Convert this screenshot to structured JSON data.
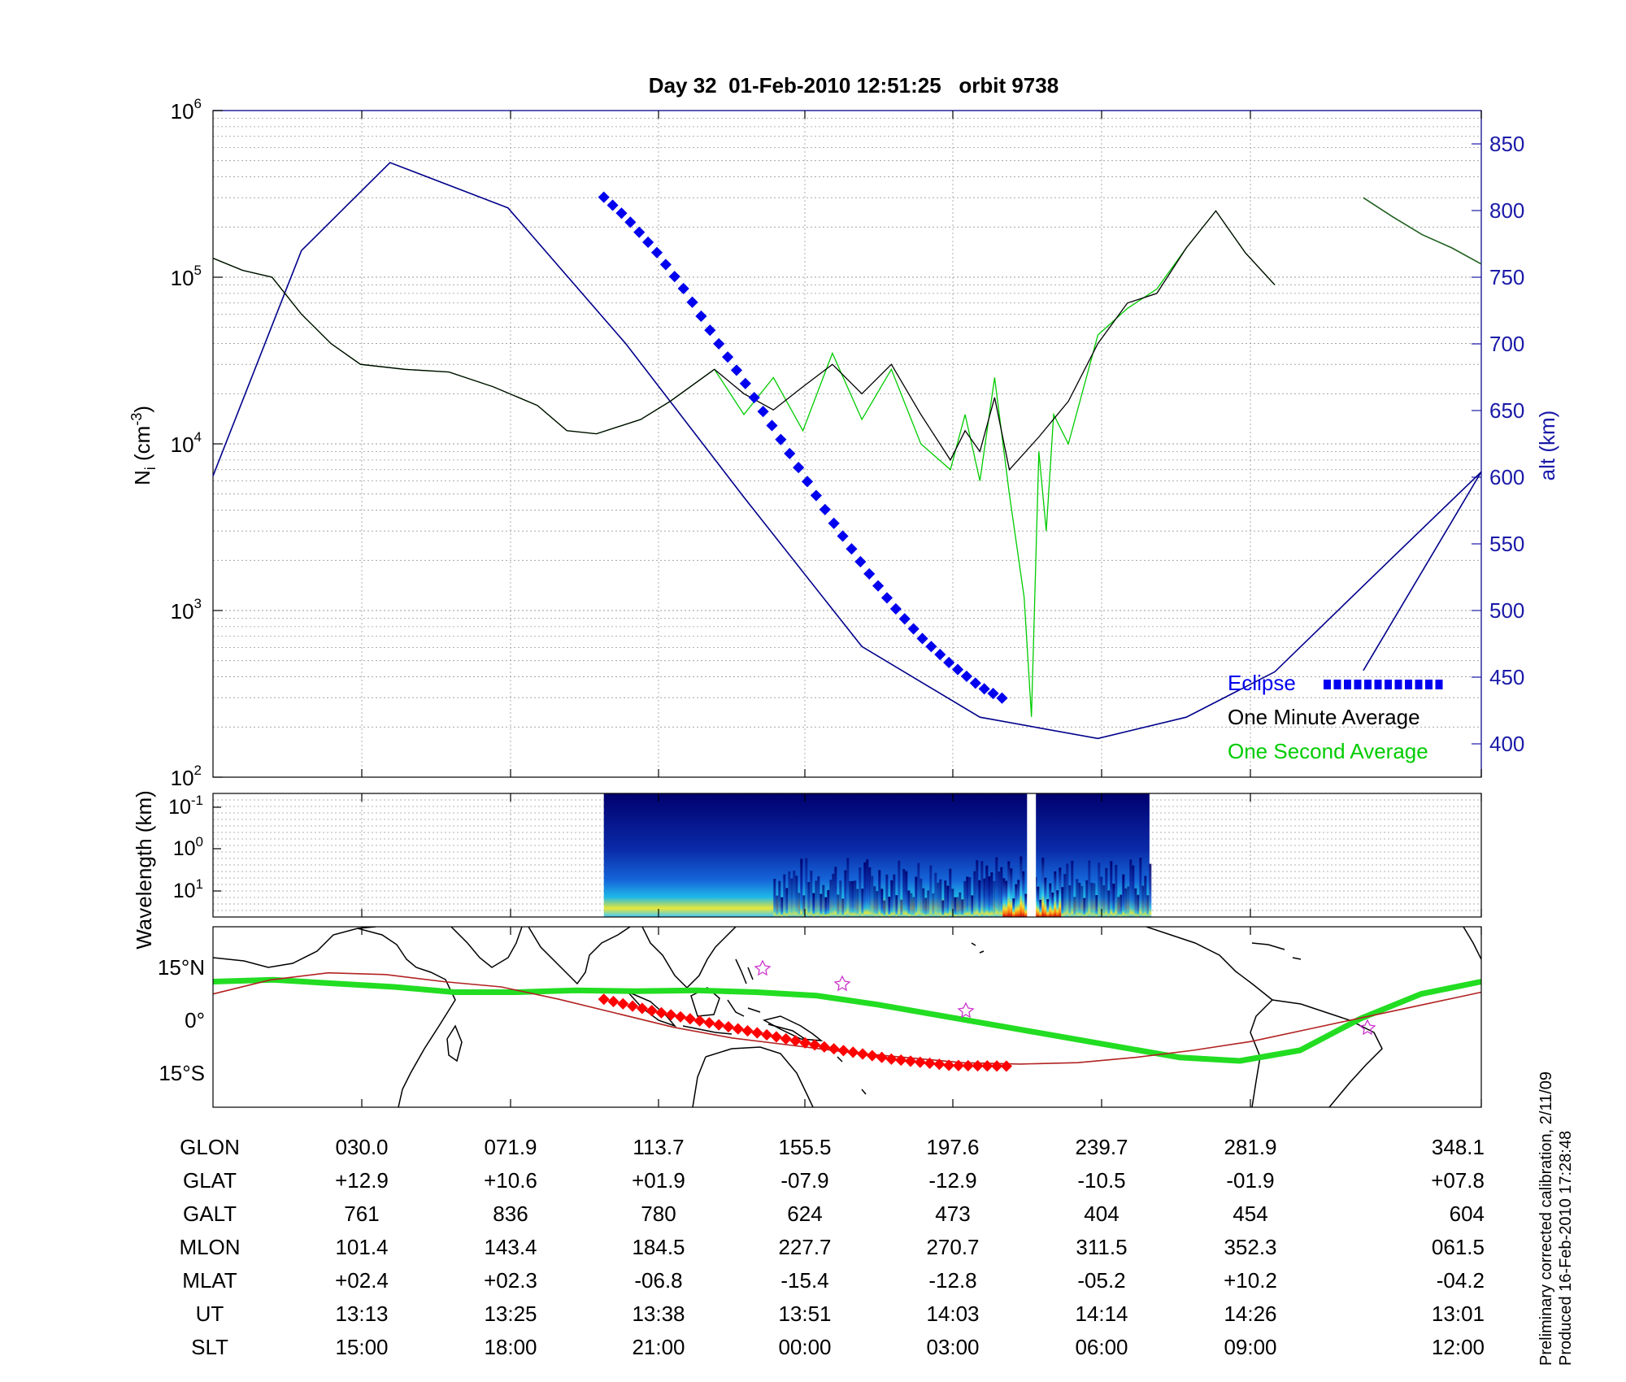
{
  "figure": {
    "title": "Day 32  01-Feb-2010 12:51:25   orbit 9738",
    "footnote_line1": "Preliminary corrected calibration, 2/11/09",
    "footnote_line2": "Produced 16-Feb-2010 17:28:48"
  },
  "colors": {
    "altitude": "#00008b",
    "axis_right": "#1a1aa8",
    "one_minute": "#000000",
    "one_second": "#00cc00",
    "eclipse": "#0000ee",
    "orbit_track": "#b22222",
    "dip_equator": "#22dd22",
    "eclipse_map": "#ff0000",
    "star": "#cc33cc"
  },
  "chart_data": [
    {
      "type": "line",
      "panel": "density",
      "ylabel": "N",
      "ylabel_sub": "i",
      "ylabel_unit": "(cm",
      "ylabel_exp": "-3",
      "ylabel_close": ")",
      "y_scale": "log",
      "ylim": [
        100,
        1000000
      ],
      "y_ticks": [
        {
          "base": "10",
          "exp": "2",
          "value": 100
        },
        {
          "base": "10",
          "exp": "3",
          "value": 1000
        },
        {
          "base": "10",
          "exp": "4",
          "value": 10000
        },
        {
          "base": "10",
          "exp": "5",
          "value": 100000
        },
        {
          "base": "10",
          "exp": "6",
          "value": 1000000
        }
      ],
      "y2label": "alt (km)",
      "y2lim": [
        375,
        875
      ],
      "y2_ticks": [
        "400",
        "450",
        "500",
        "550",
        "600",
        "650",
        "700",
        "750",
        "800",
        "850"
      ],
      "x_unit": "UT minutes",
      "xlim": [
        0,
        86
      ],
      "grid": true,
      "legend_position": "bottom-right",
      "legend": {
        "eclipse": "Eclipse",
        "minute": "One Minute Average",
        "second": "One Second Average"
      },
      "series": [
        {
          "name": "alt (km)",
          "role": "altitude",
          "x": [
            0,
            6,
            12,
            20,
            28,
            36,
            44,
            52,
            60,
            66,
            72,
            80,
            86
          ],
          "values": [
            601,
            770,
            836,
            802,
            700,
            585,
            473,
            420,
            404,
            420,
            454,
            540,
            604
          ]
        },
        {
          "name": "One Minute Average",
          "x": [
            0,
            2,
            4,
            6,
            8,
            10,
            13,
            16,
            19,
            22,
            24,
            26,
            29,
            31,
            34,
            36,
            38,
            40,
            42,
            44,
            46,
            48,
            50,
            51,
            52,
            53,
            54,
            56,
            58,
            60,
            62,
            64,
            66,
            68,
            70,
            72
          ],
          "values": [
            130000,
            110000,
            100000,
            60000,
            40000,
            30000,
            28000,
            27000,
            22000,
            17000,
            12000,
            11500,
            14000,
            18000,
            28000,
            20000,
            16000,
            22000,
            30000,
            20000,
            30000,
            15000,
            8000,
            12000,
            9000,
            19000,
            7000,
            11000,
            18000,
            40000,
            70000,
            80000,
            150000,
            250000,
            140000,
            90000
          ]
        },
        {
          "name": "One Second Average",
          "x": [
            0,
            2,
            4,
            6,
            8,
            10,
            13,
            16,
            19,
            22,
            24,
            26,
            29,
            31,
            34,
            36,
            38,
            40,
            42,
            44,
            46,
            48,
            50,
            51,
            52,
            53,
            54,
            55,
            55.5,
            56,
            56.5,
            57,
            58,
            60,
            62,
            64,
            66,
            68,
            70,
            72
          ],
          "values": [
            130000,
            110000,
            100000,
            60000,
            40000,
            30000,
            28000,
            27000,
            22000,
            17000,
            12000,
            11500,
            14000,
            18000,
            28000,
            15000,
            25000,
            12000,
            35000,
            14000,
            28000,
            10000,
            7000,
            15000,
            6000,
            25000,
            5000,
            1200,
            230,
            9000,
            3000,
            15000,
            10000,
            45000,
            65000,
            85000,
            150000,
            250000,
            140000,
            90000
          ]
        },
        {
          "name": "One Minute Average",
          "role": "wrap",
          "x": [
            78,
            80,
            82,
            84,
            86
          ],
          "values": [
            300000,
            230000,
            180000,
            150000,
            120000
          ]
        },
        {
          "name": "Eclipse",
          "role": "eclipse",
          "x": [
            26.5,
            28,
            30,
            32,
            34,
            36,
            38,
            40,
            42,
            44,
            46,
            48,
            50,
            52,
            53.9
          ],
          "values": [
            810,
            795,
            770,
            740,
            705,
            672,
            637,
            602,
            567,
            535,
            505,
            480,
            460,
            443,
            432
          ]
        }
      ]
    },
    {
      "type": "heatmap",
      "panel": "spectrogram",
      "ylabel": "Wavelength (km)",
      "y_ticks": [
        {
          "base": "10",
          "exp": "-1"
        },
        {
          "base": "10",
          "exp": "0"
        },
        {
          "base": "10",
          "exp": "1"
        }
      ],
      "data_range_ut": [
        26.5,
        63.5
      ],
      "bright_band_ut": [
        38,
        63.5
      ],
      "gap_ut": [
        55.2,
        55.8
      ]
    },
    {
      "type": "map",
      "panel": "ground-track",
      "y_ticks": [
        "15°N",
        "0°",
        "15°S"
      ],
      "orbit_track_lat": [
        7,
        11,
        13,
        12.5,
        10.5,
        9,
        5.5,
        1.5,
        -2.5,
        -5.5,
        -7.5,
        -9.5,
        -11,
        -12.5,
        -12.9,
        -12.5,
        -11,
        -9,
        -6.5,
        -3,
        0.5,
        4,
        7.5
      ],
      "dip_equator_lat": [
        10.5,
        11,
        10,
        9,
        7.5,
        7.5,
        8,
        7.8,
        8,
        7.5,
        6.5,
        4,
        1,
        -2,
        -5,
        -8,
        -11,
        -12,
        -9,
        0,
        7,
        10.5
      ],
      "eclipse_track_x": [
        26.5,
        30,
        34,
        38,
        42,
        46,
        50,
        53.9
      ],
      "eclipse_track_lat": [
        5.5,
        2,
        -1.5,
        -5,
        -8.5,
        -11.5,
        -13.3,
        -13.5
      ]
    }
  ],
  "table": {
    "rows": [
      {
        "label": "GLON",
        "values": [
          "030.0",
          "071.9",
          "113.7",
          "155.5",
          "197.6",
          "239.7",
          "281.9",
          "348.1"
        ]
      },
      {
        "label": "GLAT",
        "values": [
          "+12.9",
          "+10.6",
          "+01.9",
          "-07.9",
          "-12.9",
          "-10.5",
          "-01.9",
          "+07.8"
        ]
      },
      {
        "label": "GALT",
        "values": [
          "761",
          "836",
          "780",
          "624",
          "473",
          "404",
          "454",
          "604"
        ]
      },
      {
        "label": "MLON",
        "values": [
          "101.4",
          "143.4",
          "184.5",
          "227.7",
          "270.7",
          "311.5",
          "352.3",
          "061.5"
        ]
      },
      {
        "label": "MLAT",
        "values": [
          "+02.4",
          "+02.3",
          "-06.8",
          "-15.4",
          "-12.8",
          "-05.2",
          "+10.2",
          "-04.2"
        ]
      },
      {
        "label": "UT",
        "values": [
          "13:13",
          "13:25",
          "13:38",
          "13:51",
          "14:03",
          "14:14",
          "14:26",
          "13:01"
        ]
      },
      {
        "label": "SLT",
        "values": [
          "15:00",
          "18:00",
          "21:00",
          "00:00",
          "03:00",
          "06:00",
          "09:00",
          "12:00"
        ]
      }
    ]
  }
}
